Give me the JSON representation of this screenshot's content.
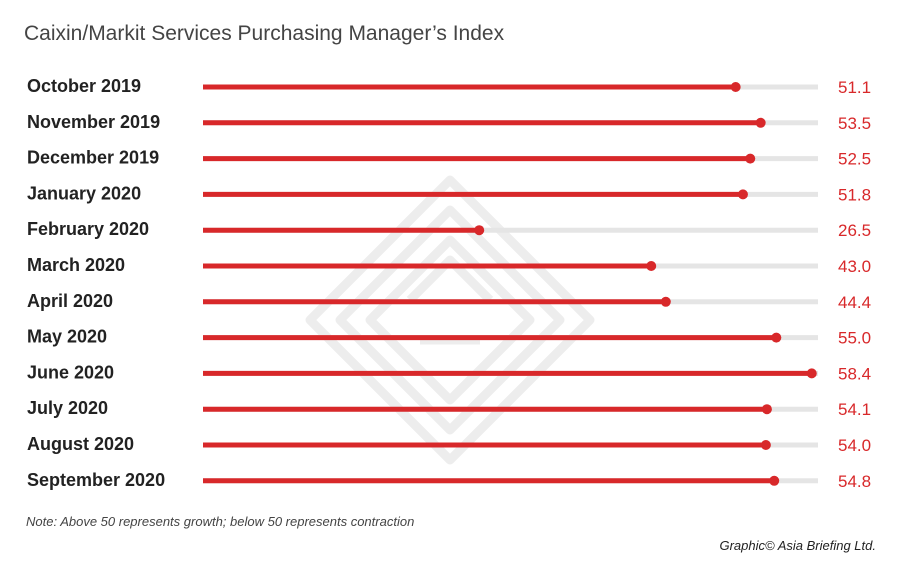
{
  "title": "Caixin/Markit Services Purchasing Manager’s Index",
  "note": "Note: Above 50 represents growth; below 50 represents contraction",
  "credit": "Graphic© Asia Briefing Ltd.",
  "colors": {
    "bar": "#d8282a",
    "track": "#e5e5e5",
    "value_text": "#d8282a",
    "label_text": "#222222"
  },
  "chart_data": {
    "type": "bar",
    "orientation": "horizontal",
    "title": "Caixin/Markit Services Purchasing Manager’s Index",
    "categories": [
      "October 2019",
      "November 2019",
      "December 2019",
      "January 2020",
      "February 2020",
      "March 2020",
      "April 2020",
      "May 2020",
      "June 2020",
      "July 2020",
      "August 2020",
      "September 2020"
    ],
    "values": [
      51.1,
      53.5,
      52.5,
      51.8,
      26.5,
      43.0,
      44.4,
      55.0,
      58.4,
      54.1,
      54.0,
      54.8
    ],
    "value_labels": [
      "51.1",
      "53.5",
      "52.5",
      "51.8",
      "26.5",
      "43.0",
      "44.4",
      "55.0",
      "58.4",
      "54.1",
      "54.0",
      "54.8"
    ],
    "xlim": [
      0,
      59
    ],
    "grid": false,
    "legend": "none"
  }
}
